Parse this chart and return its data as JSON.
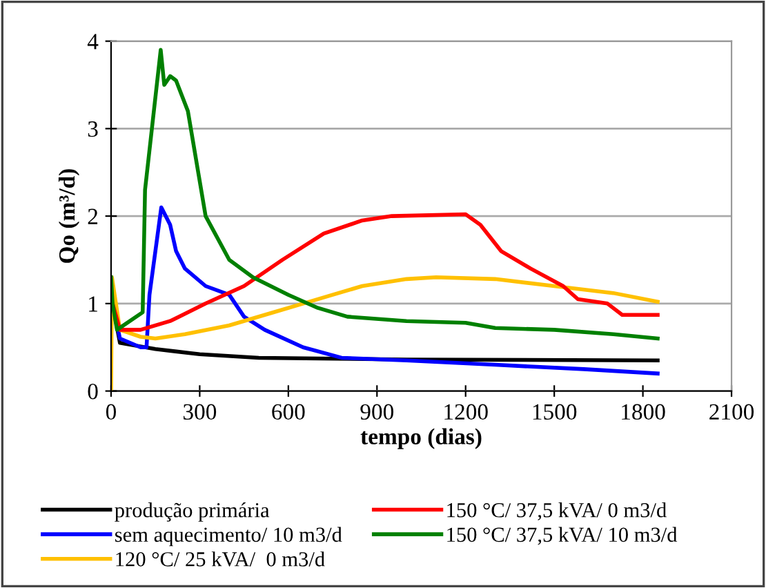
{
  "chart_data": {
    "type": "line",
    "xlabel": "tempo (dias)",
    "ylabel": "Qo (m³/d)",
    "xlim": [
      0,
      2100
    ],
    "xticks": [
      0,
      300,
      600,
      900,
      1200,
      1500,
      1800,
      2100
    ],
    "ylim": [
      0,
      4
    ],
    "yticks": [
      0,
      1,
      2,
      3,
      4
    ],
    "grid": "y",
    "legend": "bottom",
    "marker": "none",
    "line_style": "solid",
    "series": [
      {
        "name": "produção primária",
        "color": "#000000",
        "x": [
          0,
          5,
          30,
          150,
          300,
          500,
          1000,
          1850
        ],
        "values": [
          1.3,
          1.0,
          0.55,
          0.48,
          0.42,
          0.38,
          0.36,
          0.35
        ]
      },
      {
        "name": "sem aquecimento/ 10 m3/d",
        "color": "#0000ff",
        "x": [
          5,
          30,
          100,
          120,
          130,
          150,
          170,
          200,
          220,
          250,
          320,
          400,
          450,
          520,
          650,
          780,
          1000,
          1300,
          1600,
          1850
        ],
        "values": [
          1.0,
          0.6,
          0.5,
          0.5,
          1.1,
          1.6,
          2.1,
          1.9,
          1.6,
          1.4,
          1.2,
          1.1,
          0.85,
          0.7,
          0.5,
          0.38,
          0.35,
          0.3,
          0.25,
          0.2
        ]
      },
      {
        "name": "120 °C/ 25 kVA/  0 m3/d",
        "color": "#ffc000",
        "x": [
          0,
          3,
          30,
          100,
          150,
          250,
          400,
          550,
          650,
          750,
          850,
          1000,
          1100,
          1300,
          1500,
          1700,
          1850
        ],
        "values": [
          0,
          1.3,
          0.7,
          0.62,
          0.6,
          0.65,
          0.75,
          0.9,
          1.0,
          1.1,
          1.2,
          1.28,
          1.3,
          1.28,
          1.2,
          1.12,
          1.02
        ]
      },
      {
        "name": "150 °C/ 37,5 kVA/ 0 m3/d",
        "color": "#ff0000",
        "x": [
          5,
          30,
          100,
          200,
          320,
          450,
          580,
          720,
          850,
          950,
          1200,
          1250,
          1320,
          1420,
          1530,
          1580,
          1680,
          1730,
          1850
        ],
        "values": [
          1.0,
          0.7,
          0.7,
          0.8,
          1.0,
          1.2,
          1.5,
          1.8,
          1.95,
          2.0,
          2.02,
          1.9,
          1.6,
          1.4,
          1.2,
          1.05,
          1.0,
          0.87,
          0.87
        ]
      },
      {
        "name": "150 °C/ 37,5 kVA/ 10 m3/d",
        "color": "#008000",
        "x": [
          0,
          5,
          20,
          107,
          115,
          168,
          180,
          200,
          220,
          260,
          320,
          400,
          480,
          600,
          700,
          800,
          1000,
          1200,
          1300,
          1500,
          1700,
          1850
        ],
        "values": [
          1.3,
          1.0,
          0.7,
          0.9,
          2.3,
          3.9,
          3.5,
          3.6,
          3.55,
          3.2,
          2.0,
          1.5,
          1.3,
          1.1,
          0.95,
          0.85,
          0.8,
          0.78,
          0.72,
          0.7,
          0.65,
          0.6
        ]
      }
    ]
  }
}
